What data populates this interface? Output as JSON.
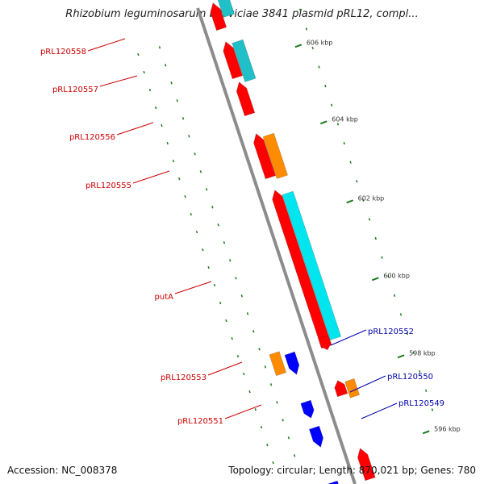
{
  "title": "Rhizobium leguminosarum bv. viciae 3841 plasmid pRL12, compl...",
  "footer": {
    "accession": "Accession: NC_008378",
    "topology": "Topology: circular; Length: 870,021 bp; Genes: 780"
  },
  "colors": {
    "backbone": "#8c8c8c",
    "forward_cds": "#ff0000",
    "reverse_cds": "#0000ff",
    "orange_feature": "#ff8c00",
    "cyan_feature": "#00e5ee",
    "teal_feature": "#20c0c8",
    "tick": "#1a7a1a",
    "label_red": "#cc0000",
    "label_blue": "#0000aa"
  },
  "ruler": [
    {
      "label": "606 kbp"
    },
    {
      "label": "604 kbp"
    },
    {
      "label": "602 kbp"
    },
    {
      "label": "600 kbp"
    },
    {
      "label": "598 kbp"
    },
    {
      "label": "596 kbp"
    }
  ],
  "gene_labels": [
    {
      "label": "pRL120558",
      "color": "red"
    },
    {
      "label": "pRL120557",
      "color": "red"
    },
    {
      "label": "pRL120556",
      "color": "red"
    },
    {
      "label": "pRL120555",
      "color": "red"
    },
    {
      "label": "putA",
      "color": "red"
    },
    {
      "label": "pRL120553",
      "color": "red"
    },
    {
      "label": "pRL120551",
      "color": "red"
    },
    {
      "label": "pRL120552",
      "color": "blue"
    },
    {
      "label": "pRL120550",
      "color": "blue"
    },
    {
      "label": "pRL120549",
      "color": "blue"
    }
  ]
}
